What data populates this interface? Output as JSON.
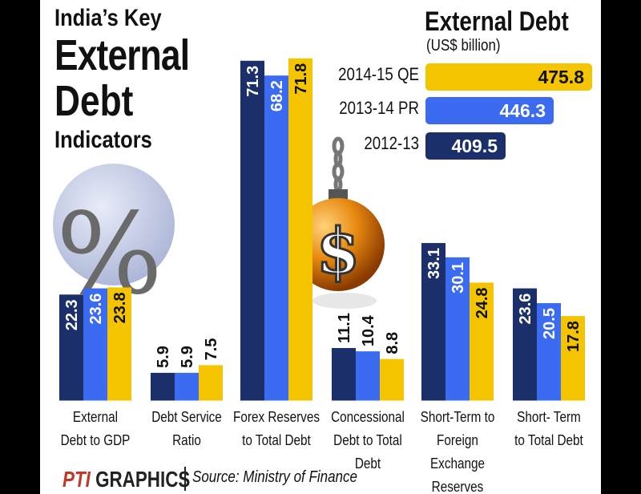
{
  "title": {
    "line1": "India’s Key",
    "line2": "External",
    "line3": "Debt",
    "line4": "Indicators"
  },
  "percent_symbol": "%",
  "external_debt": {
    "title": "External Debt",
    "unit": "(US$ billion)",
    "rows": [
      {
        "label": "2014-15 QE",
        "value": "475.8",
        "num": 475.8,
        "color": "#F5C400",
        "text_color": "#111111"
      },
      {
        "label": "2013-14 PR",
        "value": "446.3",
        "num": 446.3,
        "color": "#3A6BF0",
        "text_color": "#FFFFFF"
      },
      {
        "label": "2012-13",
        "value": "409.5",
        "num": 409.5,
        "color": "#1B2F6B",
        "text_color": "#FFFFFF"
      }
    ]
  },
  "chart_data": {
    "type": "bar",
    "categories": [
      "External Debt to GDP",
      "Debt Service Ratio",
      "Forex Reserves to Total Debt",
      "Concessional Debt to Total Debt",
      "Short-Term to Foreign Exchange Reserves",
      "Short- Term to Total Debt"
    ],
    "category_lines": [
      [
        "External",
        "Debt to GDP"
      ],
      [
        "Debt Service",
        "Ratio"
      ],
      [
        "Forex Reserves",
        "to Total Debt"
      ],
      [
        "Concessional",
        "Debt  to Total",
        "Debt"
      ],
      [
        "Short-Term to",
        "Foreign Exchange",
        "Reserves"
      ],
      [
        "Short- Term",
        "to Total Debt"
      ]
    ],
    "series": [
      {
        "name": "2012-13",
        "color": "#1B2F6B",
        "label_color": "#FFFFFF",
        "values": [
          22.3,
          5.9,
          71.3,
          11.1,
          33.1,
          23.6
        ]
      },
      {
        "name": "2013-14 PR",
        "color": "#3A6BF0",
        "label_color": "#FFFFFF",
        "values": [
          23.6,
          5.9,
          68.2,
          10.4,
          30.1,
          20.5
        ]
      },
      {
        "name": "2014-15 QE",
        "color": "#F5C400",
        "label_color": "#111111",
        "values": [
          23.8,
          7.5,
          71.8,
          8.8,
          24.8,
          17.8
        ]
      }
    ],
    "ylim": [
      0,
      75
    ]
  },
  "footer": {
    "logo_pti": "PTI",
    "logo_text": "GRAPHICS",
    "source": "Source: Ministry of Finance"
  }
}
